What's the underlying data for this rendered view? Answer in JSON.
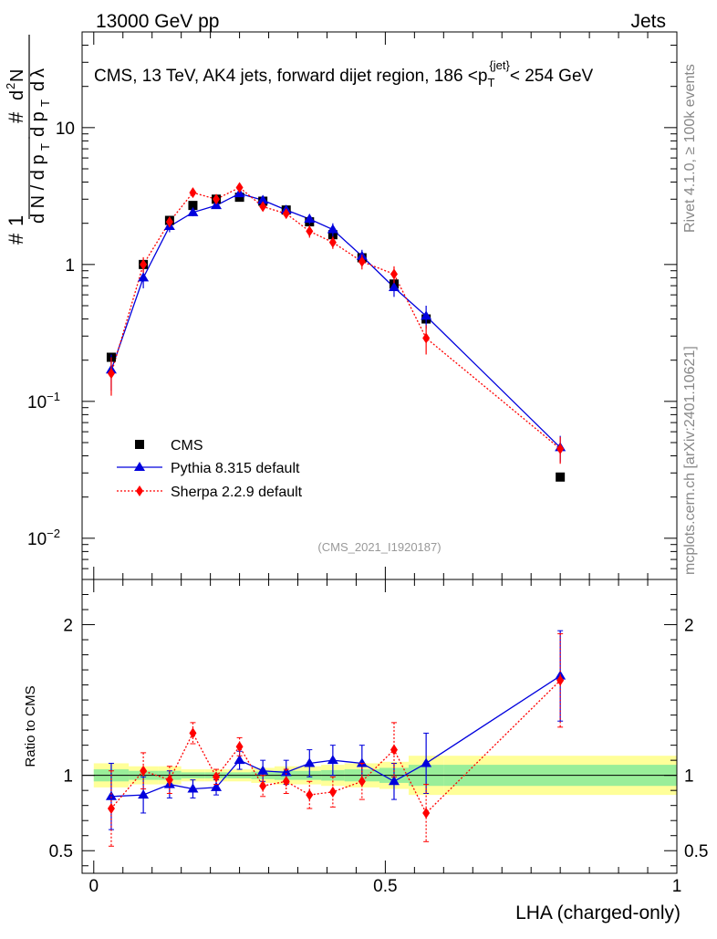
{
  "header": {
    "left": "13000 GeV pp",
    "right": "Jets"
  },
  "side": {
    "rivet": "Rivet 4.1.0, ≥ 100k events",
    "mcplots": "mcplots.cern.ch [arXiv:2401.10621]"
  },
  "chart_data": [
    {
      "type": "line",
      "panel": "main",
      "title": "CMS, 13 TeV, AK4 jets, forward dijet region, 186 <p_T^{jet}< 254 GeV",
      "ylabel": "1/(dN/dp_T) d²N/(dp_T dλ)",
      "xlabel": "LHA (charged-only)",
      "yscale": "log",
      "ylim": [
        0.005,
        50
      ],
      "xlim": [
        -0.02,
        1.0
      ],
      "y_ticks": [
        {
          "v": 0.01,
          "base": "10",
          "exp": "−2"
        },
        {
          "v": 0.1,
          "base": "10",
          "exp": "−1"
        },
        {
          "v": 1,
          "base": "1",
          "exp": ""
        },
        {
          "v": 10,
          "base": "10",
          "exp": ""
        }
      ],
      "watermark": "(CMS_2021_I1920187)",
      "legend": [
        "CMS",
        "Pythia 8.315 default",
        "Sherpa 2.2.9 default"
      ],
      "x": [
        0.03,
        0.085,
        0.13,
        0.17,
        0.21,
        0.25,
        0.29,
        0.33,
        0.37,
        0.41,
        0.46,
        0.515,
        0.57,
        0.8
      ],
      "series": [
        {
          "name": "CMS",
          "color": "#000000",
          "values": [
            0.21,
            1.0,
            2.1,
            2.7,
            3.0,
            3.1,
            2.9,
            2.5,
            2.05,
            1.65,
            1.12,
            0.72,
            0.4,
            0.028
          ]
        },
        {
          "name": "Pythia 8.315 default",
          "color": "#0000dd",
          "values": [
            0.17,
            0.8,
            1.9,
            2.4,
            2.7,
            3.3,
            2.95,
            2.5,
            2.15,
            1.8,
            1.15,
            0.68,
            0.42,
            0.046
          ],
          "errors": [
            0.05,
            0.13,
            0.18,
            0.15,
            0.12,
            0.18,
            0.2,
            0.18,
            0.18,
            0.2,
            0.13,
            0.1,
            0.08,
            0.01
          ]
        },
        {
          "name": "Sherpa 2.2.9 default",
          "color": "#ff0000",
          "values": [
            0.16,
            1.0,
            2.05,
            3.35,
            3.0,
            3.65,
            2.65,
            2.35,
            1.75,
            1.45,
            1.05,
            0.85,
            0.29,
            0.045
          ],
          "errors": [
            0.05,
            0.13,
            0.18,
            0.2,
            0.15,
            0.2,
            0.2,
            0.18,
            0.18,
            0.15,
            0.13,
            0.12,
            0.07,
            0.01
          ]
        }
      ]
    },
    {
      "type": "line",
      "panel": "ratio",
      "ylabel": "Ratio to CMS",
      "xlabel": "LHA (charged-only)",
      "ylim": [
        0.35,
        2.3
      ],
      "xlim": [
        -0.02,
        1.0
      ],
      "y_ticks": [
        0.5,
        1,
        2
      ],
      "x_ticks": [
        {
          "v": 0,
          "label": "0"
        },
        {
          "v": 0.5,
          "label": "0.5"
        },
        {
          "v": 1,
          "label": "1"
        }
      ],
      "bins": [
        0,
        0.06,
        0.11,
        0.15,
        0.19,
        0.23,
        0.27,
        0.31,
        0.35,
        0.39,
        0.43,
        0.49,
        0.54,
        0.6,
        1.0
      ],
      "band_1sigma": [
        0.04,
        0.03,
        0.03,
        0.02,
        0.02,
        0.02,
        0.025,
        0.03,
        0.03,
        0.035,
        0.04,
        0.05,
        0.07,
        0.07
      ],
      "band_2sigma": [
        0.08,
        0.06,
        0.06,
        0.04,
        0.04,
        0.04,
        0.05,
        0.06,
        0.06,
        0.07,
        0.08,
        0.09,
        0.13,
        0.13
      ],
      "x": [
        0.03,
        0.085,
        0.13,
        0.17,
        0.21,
        0.25,
        0.29,
        0.33,
        0.37,
        0.41,
        0.46,
        0.515,
        0.57,
        0.8
      ],
      "series": [
        {
          "name": "Pythia 8.315 default",
          "color": "#0000dd",
          "values": [
            0.86,
            0.87,
            0.94,
            0.91,
            0.92,
            1.1,
            1.03,
            1.02,
            1.08,
            1.1,
            1.08,
            0.96,
            1.08,
            1.66
          ],
          "errors": [
            0.22,
            0.12,
            0.09,
            0.06,
            0.05,
            0.06,
            0.07,
            0.08,
            0.09,
            0.1,
            0.12,
            0.12,
            0.2,
            0.3
          ]
        },
        {
          "name": "Sherpa 2.2.9 default",
          "color": "#ff0000",
          "values": [
            0.78,
            1.03,
            0.97,
            1.28,
            0.99,
            1.19,
            0.93,
            0.96,
            0.87,
            0.89,
            0.96,
            1.17,
            0.75,
            1.63
          ],
          "errors": [
            0.25,
            0.12,
            0.09,
            0.07,
            0.05,
            0.06,
            0.07,
            0.08,
            0.09,
            0.1,
            0.12,
            0.18,
            0.19,
            0.31
          ]
        }
      ]
    }
  ]
}
